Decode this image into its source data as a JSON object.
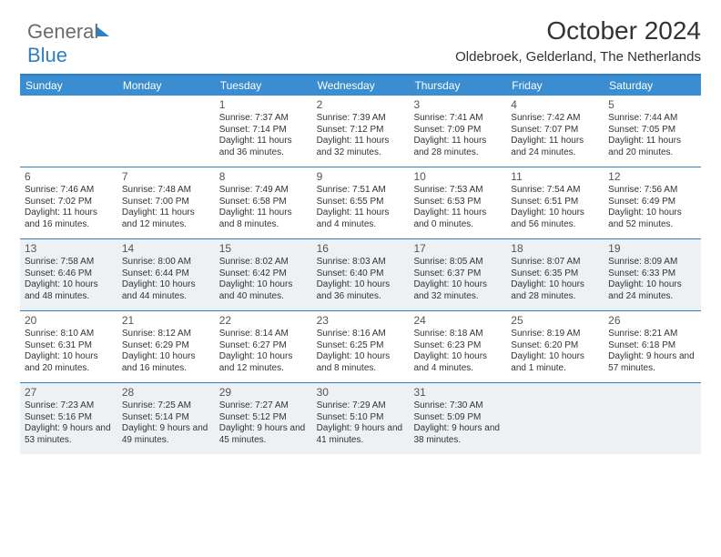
{
  "logo": {
    "part1": "General",
    "part2": "Blue"
  },
  "title": "October 2024",
  "location": "Oldebroek, Gelderland, The Netherlands",
  "colors": {
    "header_bg": "#3a8dd0",
    "header_border": "#2f7fc2",
    "shade_bg": "#eef1f3",
    "text": "#333333",
    "logo_grey": "#6b6b6b",
    "logo_blue": "#2f7fc2"
  },
  "fonts": {
    "title_size": 28,
    "location_size": 15,
    "dayhead_size": 12,
    "daynum_size": 12,
    "info_size": 10
  },
  "day_names": [
    "Sunday",
    "Monday",
    "Tuesday",
    "Wednesday",
    "Thursday",
    "Friday",
    "Saturday"
  ],
  "weeks": [
    {
      "shaded": false,
      "cells": [
        {
          "n": "",
          "sr": "",
          "ss": "",
          "dl": ""
        },
        {
          "n": "",
          "sr": "",
          "ss": "",
          "dl": ""
        },
        {
          "n": "1",
          "sr": "Sunrise: 7:37 AM",
          "ss": "Sunset: 7:14 PM",
          "dl": "Daylight: 11 hours and 36 minutes."
        },
        {
          "n": "2",
          "sr": "Sunrise: 7:39 AM",
          "ss": "Sunset: 7:12 PM",
          "dl": "Daylight: 11 hours and 32 minutes."
        },
        {
          "n": "3",
          "sr": "Sunrise: 7:41 AM",
          "ss": "Sunset: 7:09 PM",
          "dl": "Daylight: 11 hours and 28 minutes."
        },
        {
          "n": "4",
          "sr": "Sunrise: 7:42 AM",
          "ss": "Sunset: 7:07 PM",
          "dl": "Daylight: 11 hours and 24 minutes."
        },
        {
          "n": "5",
          "sr": "Sunrise: 7:44 AM",
          "ss": "Sunset: 7:05 PM",
          "dl": "Daylight: 11 hours and 20 minutes."
        }
      ]
    },
    {
      "shaded": false,
      "cells": [
        {
          "n": "6",
          "sr": "Sunrise: 7:46 AM",
          "ss": "Sunset: 7:02 PM",
          "dl": "Daylight: 11 hours and 16 minutes."
        },
        {
          "n": "7",
          "sr": "Sunrise: 7:48 AM",
          "ss": "Sunset: 7:00 PM",
          "dl": "Daylight: 11 hours and 12 minutes."
        },
        {
          "n": "8",
          "sr": "Sunrise: 7:49 AM",
          "ss": "Sunset: 6:58 PM",
          "dl": "Daylight: 11 hours and 8 minutes."
        },
        {
          "n": "9",
          "sr": "Sunrise: 7:51 AM",
          "ss": "Sunset: 6:55 PM",
          "dl": "Daylight: 11 hours and 4 minutes."
        },
        {
          "n": "10",
          "sr": "Sunrise: 7:53 AM",
          "ss": "Sunset: 6:53 PM",
          "dl": "Daylight: 11 hours and 0 minutes."
        },
        {
          "n": "11",
          "sr": "Sunrise: 7:54 AM",
          "ss": "Sunset: 6:51 PM",
          "dl": "Daylight: 10 hours and 56 minutes."
        },
        {
          "n": "12",
          "sr": "Sunrise: 7:56 AM",
          "ss": "Sunset: 6:49 PM",
          "dl": "Daylight: 10 hours and 52 minutes."
        }
      ]
    },
    {
      "shaded": true,
      "cells": [
        {
          "n": "13",
          "sr": "Sunrise: 7:58 AM",
          "ss": "Sunset: 6:46 PM",
          "dl": "Daylight: 10 hours and 48 minutes."
        },
        {
          "n": "14",
          "sr": "Sunrise: 8:00 AM",
          "ss": "Sunset: 6:44 PM",
          "dl": "Daylight: 10 hours and 44 minutes."
        },
        {
          "n": "15",
          "sr": "Sunrise: 8:02 AM",
          "ss": "Sunset: 6:42 PM",
          "dl": "Daylight: 10 hours and 40 minutes."
        },
        {
          "n": "16",
          "sr": "Sunrise: 8:03 AM",
          "ss": "Sunset: 6:40 PM",
          "dl": "Daylight: 10 hours and 36 minutes."
        },
        {
          "n": "17",
          "sr": "Sunrise: 8:05 AM",
          "ss": "Sunset: 6:37 PM",
          "dl": "Daylight: 10 hours and 32 minutes."
        },
        {
          "n": "18",
          "sr": "Sunrise: 8:07 AM",
          "ss": "Sunset: 6:35 PM",
          "dl": "Daylight: 10 hours and 28 minutes."
        },
        {
          "n": "19",
          "sr": "Sunrise: 8:09 AM",
          "ss": "Sunset: 6:33 PM",
          "dl": "Daylight: 10 hours and 24 minutes."
        }
      ]
    },
    {
      "shaded": false,
      "cells": [
        {
          "n": "20",
          "sr": "Sunrise: 8:10 AM",
          "ss": "Sunset: 6:31 PM",
          "dl": "Daylight: 10 hours and 20 minutes."
        },
        {
          "n": "21",
          "sr": "Sunrise: 8:12 AM",
          "ss": "Sunset: 6:29 PM",
          "dl": "Daylight: 10 hours and 16 minutes."
        },
        {
          "n": "22",
          "sr": "Sunrise: 8:14 AM",
          "ss": "Sunset: 6:27 PM",
          "dl": "Daylight: 10 hours and 12 minutes."
        },
        {
          "n": "23",
          "sr": "Sunrise: 8:16 AM",
          "ss": "Sunset: 6:25 PM",
          "dl": "Daylight: 10 hours and 8 minutes."
        },
        {
          "n": "24",
          "sr": "Sunrise: 8:18 AM",
          "ss": "Sunset: 6:23 PM",
          "dl": "Daylight: 10 hours and 4 minutes."
        },
        {
          "n": "25",
          "sr": "Sunrise: 8:19 AM",
          "ss": "Sunset: 6:20 PM",
          "dl": "Daylight: 10 hours and 1 minute."
        },
        {
          "n": "26",
          "sr": "Sunrise: 8:21 AM",
          "ss": "Sunset: 6:18 PM",
          "dl": "Daylight: 9 hours and 57 minutes."
        }
      ]
    },
    {
      "shaded": true,
      "cells": [
        {
          "n": "27",
          "sr": "Sunrise: 7:23 AM",
          "ss": "Sunset: 5:16 PM",
          "dl": "Daylight: 9 hours and 53 minutes."
        },
        {
          "n": "28",
          "sr": "Sunrise: 7:25 AM",
          "ss": "Sunset: 5:14 PM",
          "dl": "Daylight: 9 hours and 49 minutes."
        },
        {
          "n": "29",
          "sr": "Sunrise: 7:27 AM",
          "ss": "Sunset: 5:12 PM",
          "dl": "Daylight: 9 hours and 45 minutes."
        },
        {
          "n": "30",
          "sr": "Sunrise: 7:29 AM",
          "ss": "Sunset: 5:10 PM",
          "dl": "Daylight: 9 hours and 41 minutes."
        },
        {
          "n": "31",
          "sr": "Sunrise: 7:30 AM",
          "ss": "Sunset: 5:09 PM",
          "dl": "Daylight: 9 hours and 38 minutes."
        },
        {
          "n": "",
          "sr": "",
          "ss": "",
          "dl": ""
        },
        {
          "n": "",
          "sr": "",
          "ss": "",
          "dl": ""
        }
      ]
    }
  ]
}
